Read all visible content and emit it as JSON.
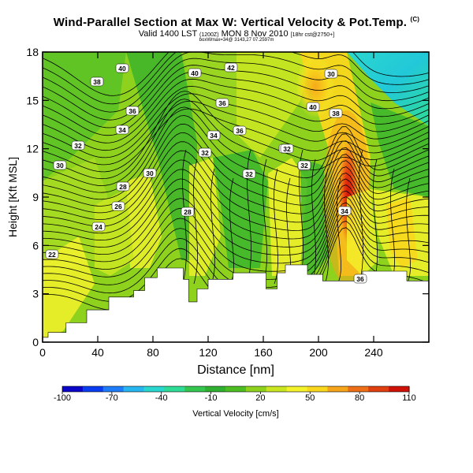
{
  "chart_data": {
    "type": "heatmap",
    "title": "Wind-Parallel Section at Max W: Vertical Velocity & Pot.Temp.",
    "title_mark": "(C)",
    "subtitle_main": "Valid 1400 LST",
    "subtitle_paren": "(1200Z)",
    "subtitle_day": "MON 8 Nov 2010",
    "subtitle_tail": "[18hr cst@2750+]",
    "subtitle2": "boxWmax=34@ 3143,27 07.2597m",
    "xlabel": "Distance [nm]",
    "ylabel": "Height [Kft MSL]",
    "xlim": [
      0,
      280
    ],
    "ylim": [
      0,
      18
    ],
    "x_ticks": [
      0,
      40,
      80,
      120,
      160,
      200,
      240
    ],
    "y_ticks": [
      0,
      3,
      6,
      9,
      12,
      15,
      18
    ],
    "colorbar": {
      "label": "Vertical Velocity [cm/s]",
      "ticks": [
        "-100",
        "-70",
        "-40",
        "-10",
        "20",
        "50",
        "80",
        "110"
      ],
      "min": -100,
      "max": 110,
      "colors": [
        "#0b05c8",
        "#0a3cf0",
        "#1f7cf8",
        "#27b6f0",
        "#2ad7cf",
        "#2fdc95",
        "#35c650",
        "#30b030",
        "#4cbe22",
        "#8ed21e",
        "#c9e620",
        "#f4f22b",
        "#f8d71d",
        "#f6a41a",
        "#ee6f17",
        "#e03f10",
        "#cf1208"
      ]
    },
    "contour_labels": [
      "40",
      "38",
      "36",
      "34",
      "32",
      "30",
      "28",
      "26",
      "24",
      "22",
      "40",
      "42",
      "36",
      "34",
      "32",
      "30",
      "28",
      "36",
      "34",
      "32",
      "30",
      "40",
      "38",
      "36",
      "32",
      "34",
      "32",
      "32"
    ],
    "terrain": [
      [
        0,
        0.3
      ],
      [
        4,
        0.3
      ],
      [
        4,
        0.6
      ],
      [
        17,
        0.6
      ],
      [
        17,
        1.2
      ],
      [
        32,
        1.2
      ],
      [
        32,
        2.0
      ],
      [
        48,
        2.0
      ],
      [
        48,
        2.8
      ],
      [
        66,
        2.8
      ],
      [
        66,
        3.2
      ],
      [
        74,
        3.2
      ],
      [
        74,
        4.0
      ],
      [
        83,
        4.0
      ],
      [
        83,
        4.6
      ],
      [
        102,
        4.6
      ],
      [
        102,
        3.9
      ],
      [
        106,
        3.9
      ],
      [
        106,
        2.5
      ],
      [
        112,
        2.5
      ],
      [
        112,
        3.3
      ],
      [
        120,
        3.3
      ],
      [
        120,
        3.9
      ],
      [
        138,
        3.9
      ],
      [
        138,
        4.3
      ],
      [
        162,
        4.3
      ],
      [
        162,
        3.3
      ],
      [
        170,
        3.3
      ],
      [
        170,
        4.3
      ],
      [
        176,
        4.3
      ],
      [
        176,
        4.8
      ],
      [
        192,
        4.8
      ],
      [
        192,
        4.2
      ],
      [
        203,
        4.2
      ],
      [
        203,
        3.8
      ],
      [
        232,
        3.8
      ],
      [
        232,
        4.4
      ],
      [
        264,
        4.4
      ],
      [
        264,
        3.8
      ],
      [
        280,
        3.8
      ]
    ]
  }
}
